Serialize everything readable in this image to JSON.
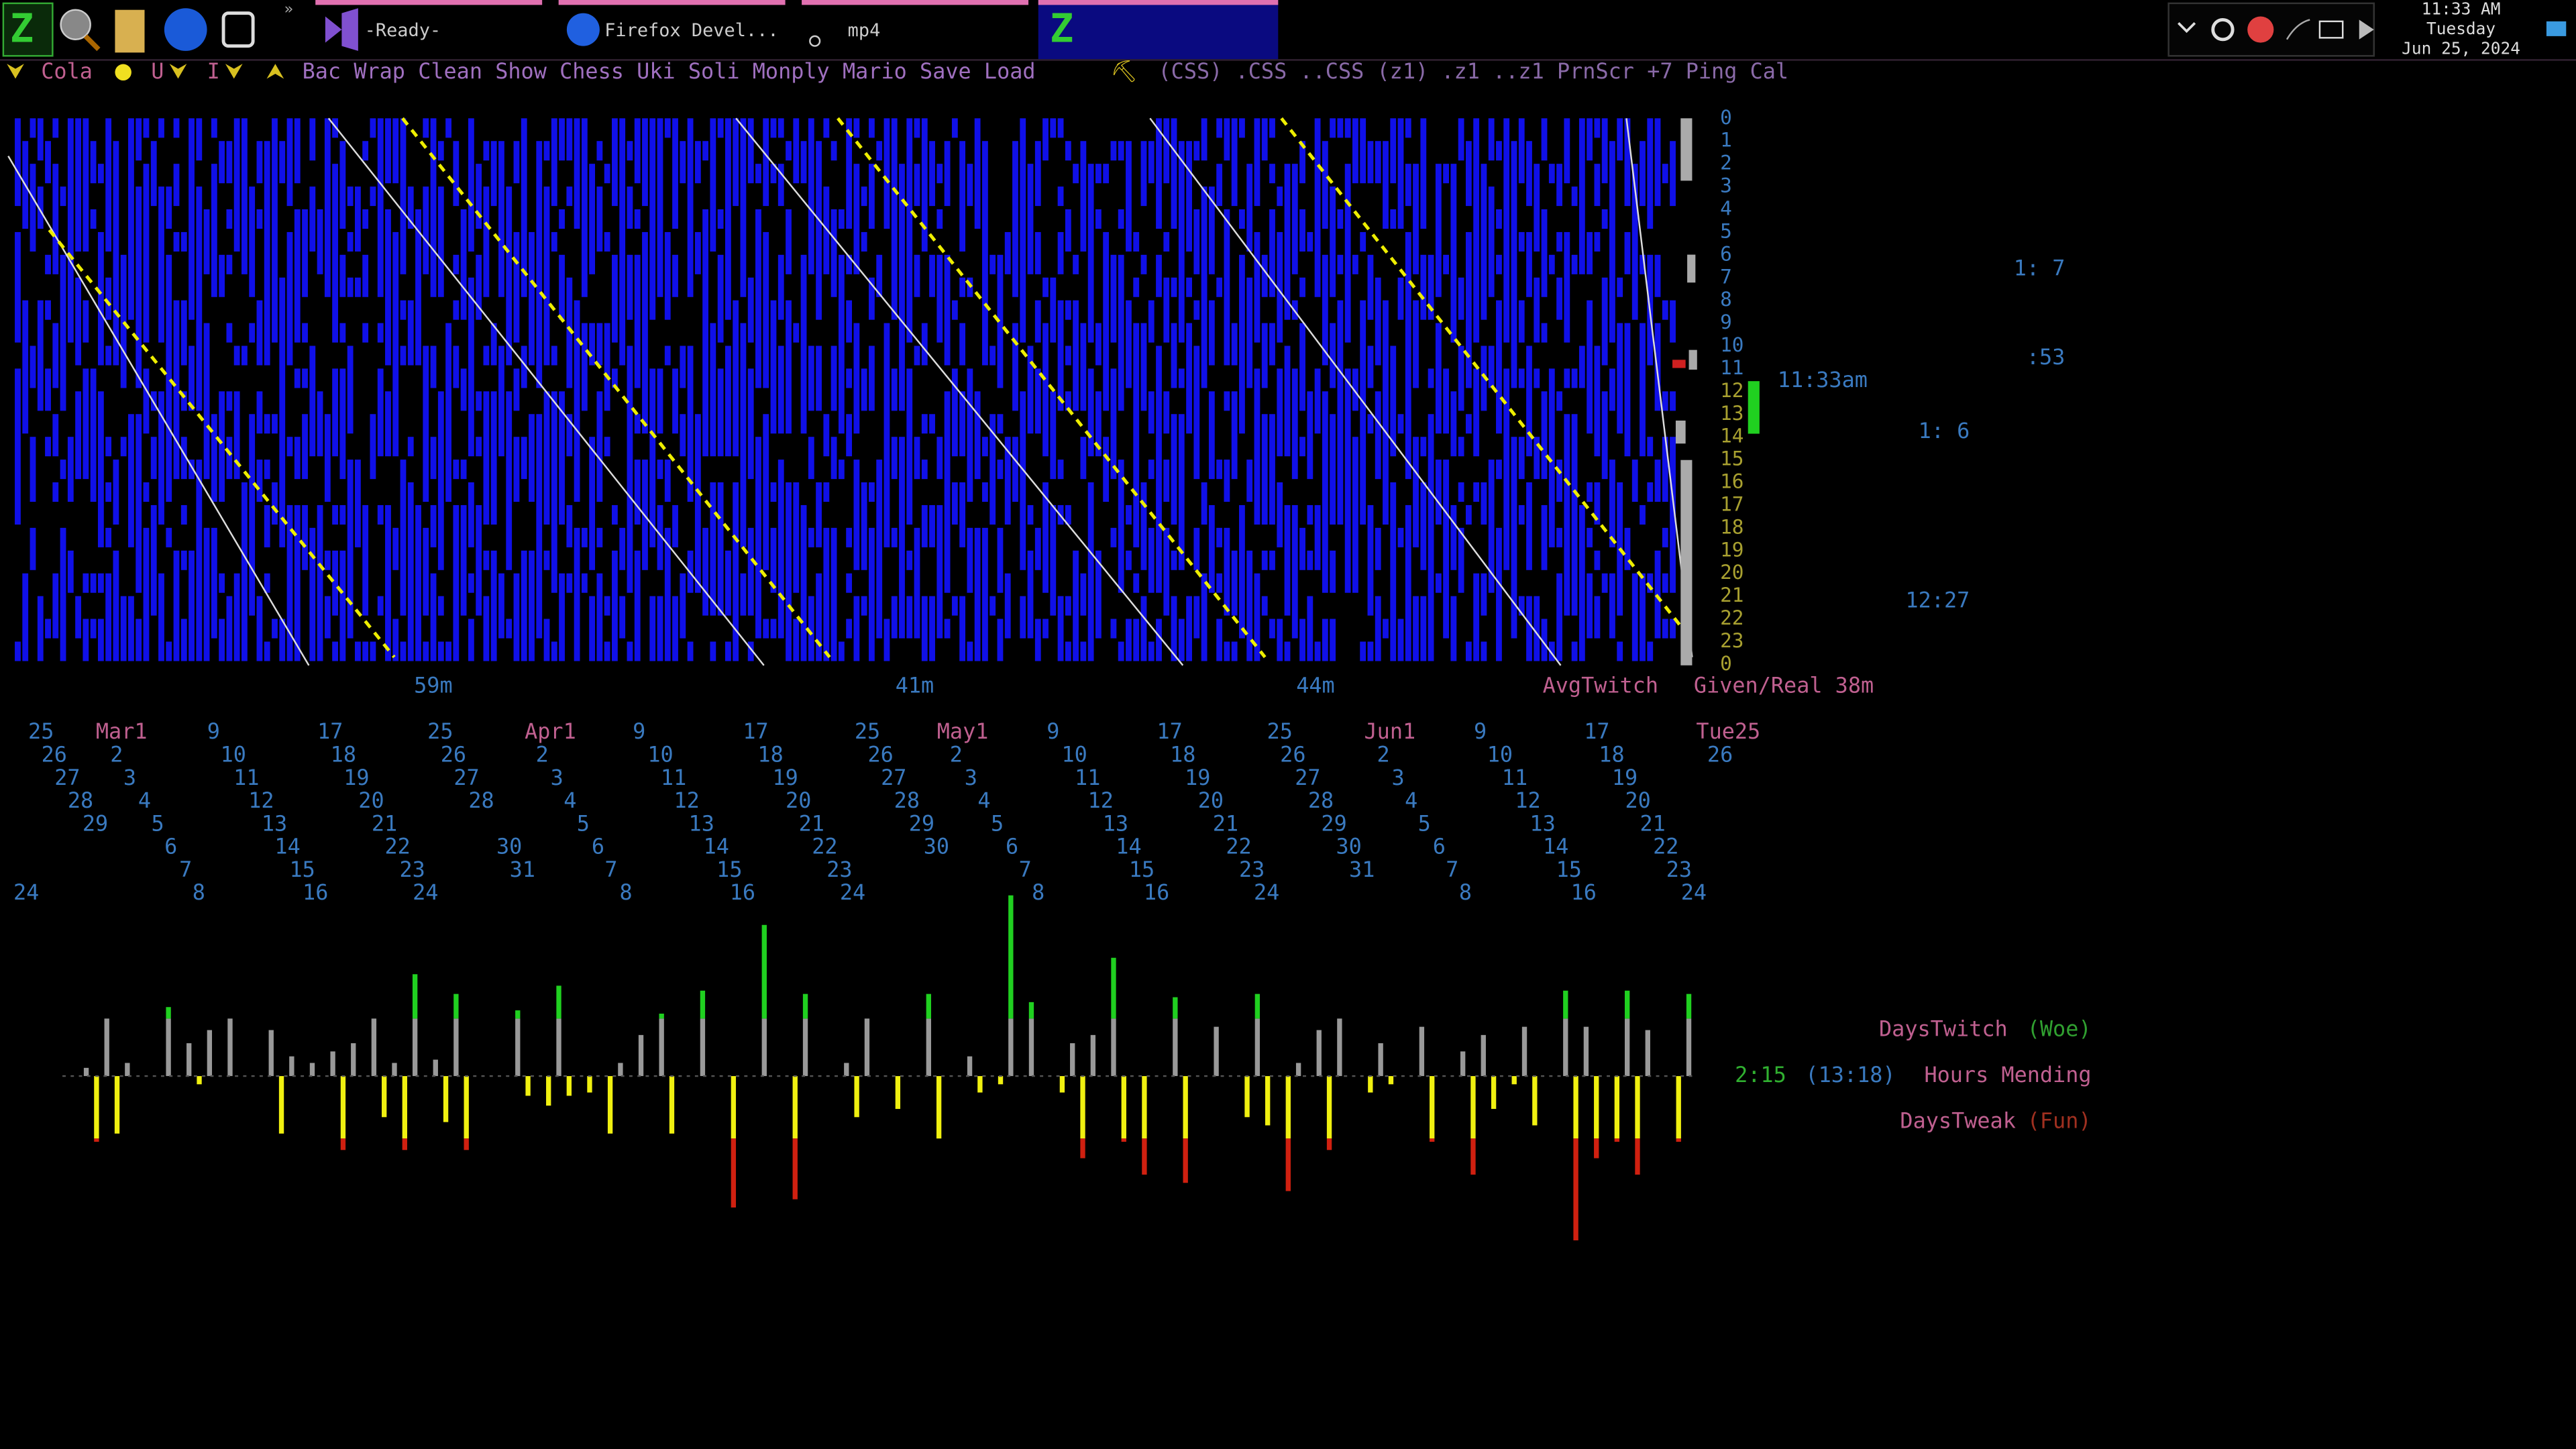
{
  "taskbar": {
    "tabs": [
      "-Ready-",
      "Firefox Devel...",
      "mp4"
    ],
    "clock": {
      "time": "11:33 AM",
      "day": "Tuesday",
      "date": "Jun 25, 2024"
    }
  },
  "toolbar": {
    "first": "Cola",
    "second": "U",
    "items": [
      "Bac",
      "Wrap",
      "Clean",
      "Show",
      "Chess",
      "Uki",
      "Soli",
      "Monply",
      "Mario",
      "Save",
      "Load"
    ],
    "items2": [
      "(CSS)",
      ".CSS",
      "..CSS",
      "(z1)",
      ".z1",
      "..z1",
      "PrnScr",
      "+7",
      "Ping",
      "Cal"
    ]
  },
  "activity": {
    "hours": [
      "0",
      "1",
      "2",
      "3",
      "4",
      "5",
      "6",
      "7",
      "8",
      "9",
      "10",
      "11",
      "12",
      "13",
      "14",
      "15",
      "16",
      "17",
      "18",
      "19",
      "20",
      "21",
      "22",
      "23",
      "0"
    ],
    "side_labels": [
      "1: 7",
      ":53",
      "11:33am",
      "1: 6",
      "12:27"
    ],
    "bottom_labels": [
      "59m",
      "41m",
      "44m",
      "AvgTwitch",
      "Given/Real 38m"
    ]
  },
  "calendar": {
    "rows": [
      [
        "25",
        "Mar1",
        "9",
        "17",
        "25",
        "Apr1",
        "9",
        "17",
        "25",
        "May1",
        "9",
        "17",
        "25",
        "Jun1",
        "9",
        "17",
        "Tue25"
      ],
      [
        "26",
        "2",
        "10",
        "18",
        "26",
        "2",
        "10",
        "18",
        "26",
        "2",
        "10",
        "18",
        "26",
        "2",
        "10",
        "18",
        "26"
      ],
      [
        "27",
        "3",
        "11",
        "19",
        "27",
        "3",
        "11",
        "19",
        "27",
        "3",
        "11",
        "19",
        "27",
        "3",
        "11",
        "19"
      ],
      [
        "28",
        "4",
        "12",
        "20",
        "28",
        "4",
        "12",
        "20",
        "28",
        "4",
        "12",
        "20",
        "28",
        "4",
        "12",
        "20"
      ],
      [
        "29",
        "5",
        "13",
        "21",
        "5",
        "13",
        "21",
        "29",
        "5",
        "13",
        "21",
        "29",
        "5",
        "13",
        "21"
      ],
      [
        "6",
        "14",
        "22",
        "30",
        "6",
        "14",
        "22",
        "30",
        "6",
        "14",
        "22",
        "30",
        "6",
        "14",
        "22"
      ],
      [
        "7",
        "15",
        "23",
        "31",
        "7",
        "15",
        "23",
        "7",
        "15",
        "23",
        "31",
        "7",
        "15",
        "23"
      ],
      [
        "24",
        "8",
        "16",
        "24",
        "8",
        "16",
        "24",
        "8",
        "16",
        "24",
        "8",
        "16",
        "24"
      ]
    ]
  },
  "days": {
    "twitch": [
      0,
      5,
      35,
      8,
      0,
      42,
      20,
      28,
      35,
      0,
      28,
      12,
      8,
      15,
      20,
      35,
      8,
      62,
      10,
      50,
      0,
      0,
      40,
      0,
      55,
      0,
      0,
      8,
      25,
      38,
      0,
      52,
      0,
      0,
      92,
      0,
      50,
      0,
      8,
      35,
      0,
      0,
      50,
      0,
      12,
      0,
      110,
      45,
      0,
      20,
      25,
      72,
      0,
      0,
      48,
      0,
      30,
      0,
      50,
      0,
      8,
      28,
      35,
      0,
      20,
      0,
      30,
      0,
      15,
      25,
      0,
      30,
      0,
      52,
      30,
      0,
      52,
      28,
      0,
      50
    ],
    "tweak": [
      0,
      40,
      35,
      0,
      0,
      0,
      5,
      0,
      0,
      0,
      35,
      0,
      0,
      45,
      0,
      25,
      45,
      0,
      28,
      45,
      0,
      0,
      12,
      18,
      12,
      10,
      35,
      0,
      0,
      35,
      0,
      0,
      80,
      0,
      0,
      75,
      0,
      0,
      25,
      0,
      20,
      0,
      38,
      0,
      10,
      5,
      0,
      0,
      10,
      50,
      0,
      40,
      60,
      0,
      65,
      0,
      0,
      25,
      30,
      70,
      0,
      45,
      0,
      10,
      5,
      0,
      40,
      0,
      60,
      20,
      5,
      30,
      0,
      100,
      50,
      40,
      60,
      0,
      40,
      0
    ],
    "labels": {
      "twitch": "DaysTwitch",
      "woe": "(Woe)",
      "hours": "2:15",
      "total": "(13:18)",
      "mending": "Hours Mending",
      "tweak": "DaysTweak",
      "fun": "(Fun)"
    }
  }
}
